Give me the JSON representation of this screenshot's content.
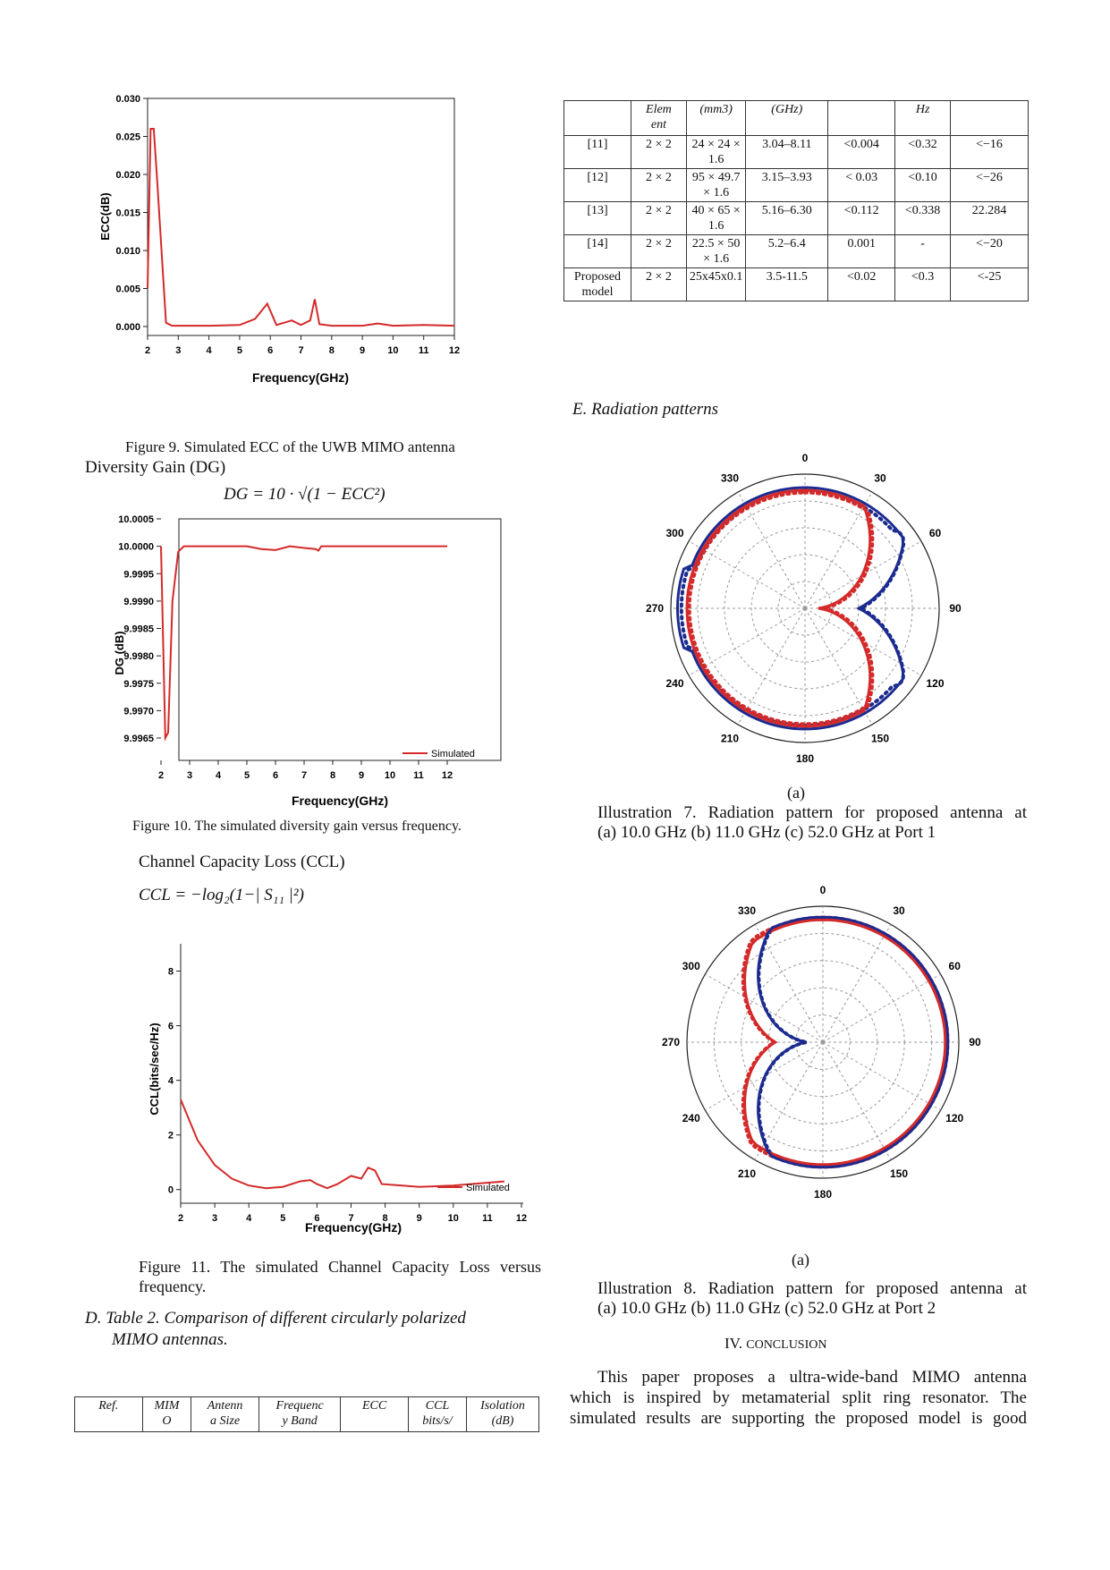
{
  "fig9": {
    "caption": "Figure 9. Simulated ECC of the UWB MIMO antenna",
    "ylabel": "ECC(dB)",
    "xlabel": "Frequency(GHz)",
    "yticks": [
      "0.030",
      "0.025",
      "0.020",
      "0.015",
      "0.010",
      "0.005",
      "0.000"
    ],
    "xticks": [
      "2",
      "3",
      "4",
      "5",
      "6",
      "7",
      "8",
      "9",
      "10",
      "11",
      "12"
    ]
  },
  "dg": {
    "heading": "Diversity Gain (DG)",
    "formula": "DG = 10 · √(1 − ECC²)"
  },
  "fig10": {
    "caption": "Figure 10. The simulated diversity gain versus frequency.",
    "ylabel": "DG (dB)",
    "xlabel": "Frequency(GHz)",
    "legend": "Simulated",
    "yticks": [
      "10.0005",
      "10.0000",
      "9.9995",
      "9.9990",
      "9.9985",
      "9.9980",
      "9.9975",
      "9.9970",
      "9.9965"
    ],
    "xticks": [
      "2",
      "3",
      "4",
      "5",
      "6",
      "7",
      "8",
      "9",
      "10",
      "11",
      "12"
    ]
  },
  "ccl": {
    "heading": "Channel Capacity Loss (CCL)",
    "formula": "CCL = −log₂(1−| S₁₁ |²)"
  },
  "fig11": {
    "caption": "Figure 11. The simulated Channel Capacity Loss versus frequency.",
    "ylabel": "CCL(bits/sec/Hz)",
    "xlabel": "Frequency(GHz)",
    "legend": "Simulated",
    "yticks": [
      "8",
      "6",
      "4",
      "2",
      "0"
    ],
    "xticks": [
      "2",
      "3",
      "4",
      "5",
      "6",
      "7",
      "8",
      "9",
      "10",
      "11",
      "12"
    ]
  },
  "sectionD": {
    "title_line1": "D. Table 2. Comparison of different circularly polarized",
    "title_line2": "MIMO antennas."
  },
  "table_header_row1": [
    "Ref.",
    "MIM",
    "Antenn",
    "Frequenc",
    "ECC",
    "CCL",
    "Isolation"
  ],
  "table_header_row2": [
    "",
    "O",
    "a Size",
    "y Band",
    "",
    "bits/s/",
    "(dB)"
  ],
  "table_continued_header": [
    "",
    "Elem",
    "(mm3)",
    "(GHz)",
    "",
    "Hz",
    ""
  ],
  "table_continued_header2": [
    "",
    "ent",
    "",
    "",
    "",
    "",
    ""
  ],
  "table_rows": [
    {
      "ref": "[11]",
      "mimo": "2 × 2",
      "size": "24 × 24 × 1.6",
      "band": "3.04–8.11",
      "ecc": "<0.004",
      "ccl": "<0.32",
      "iso": "<−16"
    },
    {
      "ref": "[12]",
      "mimo": "2 × 2",
      "size": "95 × 49.7 × 1.6",
      "band": "3.15–3.93",
      "ecc": "< 0.03",
      "ccl": "<0.10",
      "iso": "<−26"
    },
    {
      "ref": "[13]",
      "mimo": "2 × 2",
      "size": "40 × 65 × 1.6",
      "band": "5.16–6.30",
      "ecc": "<0.112",
      "ccl": "<0.338",
      "iso": "22.284"
    },
    {
      "ref": "[14]",
      "mimo": "2 × 2",
      "size": "22.5 × 50 × 1.6",
      "band": "5.2–6.4",
      "ecc": "0.001",
      "ccl": "-",
      "iso": "<−20"
    },
    {
      "ref": "Proposed model",
      "mimo": "2 × 2",
      "size": "25x45x0.1",
      "band": "3.5-11.5",
      "ecc": "<0.02",
      "ccl": "<0.3",
      "iso": "<-25"
    }
  ],
  "sectionE": {
    "title": "E. Radiation patterns"
  },
  "polar_angles": [
    "0",
    "30",
    "60",
    "90",
    "120",
    "150",
    "180",
    "210",
    "240",
    "270",
    "300",
    "330"
  ],
  "ill7": {
    "sub": "(a)",
    "line1": "Illustration 7. Radiation pattern for proposed antenna at",
    "line2": "(a) 10.0 GHz  (b) 11.0 GHz (c) 52.0 GHz at Port 1"
  },
  "ill8": {
    "sub": "(a)",
    "line1": "Illustration 8. Radiation pattern for proposed antenna at",
    "line2": "(a) 10.0 GHz  (b) 11.0 GHz (c) 52.0 GHz at Port 2"
  },
  "conclusion": {
    "heading_num": "IV.",
    "heading": "CONCLUSION",
    "line1": "This paper proposes a ultra-wide-band MIMO antenna",
    "line2": "which is inspired by metamaterial split ring resonator. The",
    "line3": "simulated results are supporting the proposed model is good"
  },
  "colors": {
    "red": "#d42a2a",
    "blue": "#1c2b8f",
    "axis": "#222222"
  },
  "chart_data": [
    {
      "type": "line",
      "title": "",
      "xlabel": "Frequency(GHz)",
      "ylabel": "ECC(dB)",
      "xlim": [
        2,
        12
      ],
      "ylim": [
        0,
        0.03
      ],
      "series": [
        {
          "values_x": [
            2,
            2.1,
            2.2,
            2.3,
            2.6,
            2.8,
            3,
            4,
            5,
            5.5,
            5.9,
            6.2,
            6.7,
            7,
            7.3,
            7.45,
            7.6,
            8,
            9,
            9.5,
            10,
            11,
            12
          ],
          "values_y": [
            0.005,
            0.026,
            0.026,
            0.02,
            0.0005,
            0.0001,
            0.0001,
            0.0001,
            0.0002,
            0.001,
            0.003,
            0.0002,
            0.0008,
            0.0002,
            0.0008,
            0.0036,
            0.0003,
            0.0001,
            0.0001,
            0.0004,
            0.0001,
            0.0002,
            0.0001
          ]
        }
      ]
    },
    {
      "type": "line",
      "title": "",
      "xlabel": "Frequency(GHz)",
      "ylabel": "DG (dB)",
      "xlim": [
        2,
        12
      ],
      "ylim": [
        9.9965,
        10.0005
      ],
      "series": [
        {
          "name": "Simulated",
          "values_x": [
            2,
            2.15,
            2.25,
            2.4,
            2.6,
            2.8,
            3,
            5,
            5.5,
            6,
            6.5,
            7,
            7.4,
            7.5,
            7.6,
            8,
            10,
            12
          ],
          "values_y": [
            10.0,
            9.9965,
            9.9966,
            9.999,
            9.9999,
            10.0,
            10.0,
            10.0,
            9.99995,
            9.99993,
            10.0,
            9.99997,
            9.99995,
            9.99992,
            10.0,
            10.0,
            10.0,
            10.0
          ]
        }
      ]
    },
    {
      "type": "line",
      "title": "",
      "xlabel": "Frequency(GHz)",
      "ylabel": "CCL(bits/sec/Hz)",
      "xlim": [
        2,
        12
      ],
      "ylim": [
        -0.5,
        9
      ],
      "series": [
        {
          "name": "Simulated",
          "values_x": [
            2,
            2.5,
            3,
            3.5,
            4,
            4.5,
            5,
            5.5,
            5.8,
            6,
            6.3,
            6.6,
            7,
            7.3,
            7.5,
            7.7,
            7.9,
            8.5,
            9,
            10,
            11,
            11.5
          ],
          "values_y": [
            3.3,
            1.8,
            0.9,
            0.4,
            0.15,
            0.05,
            0.1,
            0.3,
            0.35,
            0.2,
            0.05,
            0.2,
            0.5,
            0.4,
            0.8,
            0.7,
            0.2,
            0.15,
            0.1,
            0.15,
            0.25,
            0.3
          ]
        }
      ]
    }
  ]
}
